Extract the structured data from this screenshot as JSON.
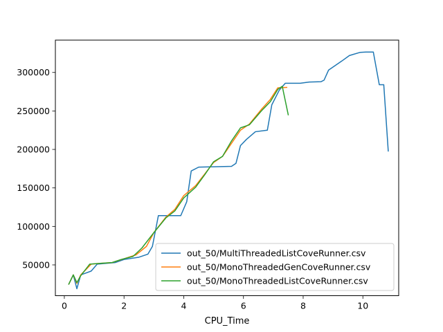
{
  "chart_data": {
    "type": "line",
    "xlabel": "CPU_Time",
    "ylabel": "",
    "xlim": [
      -0.3,
      11.2
    ],
    "ylim": [
      10000,
      342000
    ],
    "x_ticks": [
      0,
      2,
      4,
      6,
      8,
      10
    ],
    "x_tick_labels": [
      "0",
      "2",
      "4",
      "6",
      "8",
      "10"
    ],
    "y_ticks": [
      50000,
      100000,
      150000,
      200000,
      250000,
      300000
    ],
    "y_tick_labels": [
      "50000",
      "100000",
      "150000",
      "200000",
      "250000",
      "300000"
    ],
    "grid": false,
    "legend_position": "lower-right",
    "series": [
      {
        "name": "out_50/MultiThreadedListCoveRunner.csv",
        "color": "#1f77b4",
        "points": [
          [
            0.15,
            25000
          ],
          [
            0.3,
            37000
          ],
          [
            0.42,
            19000
          ],
          [
            0.55,
            37000
          ],
          [
            0.9,
            42000
          ],
          [
            1.1,
            51000
          ],
          [
            1.4,
            52000
          ],
          [
            1.7,
            53000
          ],
          [
            2.0,
            57000
          ],
          [
            2.5,
            60000
          ],
          [
            2.8,
            64000
          ],
          [
            2.95,
            74000
          ],
          [
            3.15,
            114000
          ],
          [
            3.5,
            114000
          ],
          [
            3.9,
            114000
          ],
          [
            4.1,
            132000
          ],
          [
            4.25,
            172000
          ],
          [
            4.5,
            177000
          ],
          [
            5.0,
            177500
          ],
          [
            5.6,
            178000
          ],
          [
            5.75,
            182000
          ],
          [
            5.9,
            205000
          ],
          [
            6.1,
            213000
          ],
          [
            6.4,
            223000
          ],
          [
            6.8,
            225000
          ],
          [
            6.95,
            258000
          ],
          [
            7.2,
            277000
          ],
          [
            7.4,
            286000
          ],
          [
            7.9,
            286000
          ],
          [
            8.2,
            287500
          ],
          [
            8.6,
            288000
          ],
          [
            8.7,
            290000
          ],
          [
            8.85,
            303000
          ],
          [
            9.3,
            315000
          ],
          [
            9.55,
            322000
          ],
          [
            9.9,
            326000
          ],
          [
            10.1,
            326500
          ],
          [
            10.35,
            326500
          ],
          [
            10.55,
            284000
          ],
          [
            10.7,
            284000
          ],
          [
            10.85,
            198000
          ]
        ]
      },
      {
        "name": "out_50/MonoThreadedGenCoveRunner.csv",
        "color": "#ff7f0e",
        "points": [
          [
            0.15,
            25000
          ],
          [
            0.3,
            37000
          ],
          [
            0.42,
            26000
          ],
          [
            0.55,
            37000
          ],
          [
            0.9,
            51000
          ],
          [
            1.2,
            52000
          ],
          [
            1.6,
            53000
          ],
          [
            2.0,
            58000
          ],
          [
            2.4,
            63000
          ],
          [
            2.75,
            74000
          ],
          [
            3.0,
            92000
          ],
          [
            3.4,
            112000
          ],
          [
            3.7,
            122000
          ],
          [
            4.0,
            140000
          ],
          [
            4.4,
            153000
          ],
          [
            4.7,
            168000
          ],
          [
            5.0,
            183000
          ],
          [
            5.3,
            191000
          ],
          [
            5.6,
            208000
          ],
          [
            5.9,
            225000
          ],
          [
            6.2,
            233000
          ],
          [
            6.6,
            252000
          ],
          [
            6.9,
            265000
          ],
          [
            7.15,
            280000
          ],
          [
            7.45,
            280500
          ]
        ]
      },
      {
        "name": "out_50/MonoThreadedListCoveRunner.csv",
        "color": "#2ca02c",
        "points": [
          [
            0.15,
            25000
          ],
          [
            0.3,
            37000
          ],
          [
            0.42,
            27000
          ],
          [
            0.55,
            36000
          ],
          [
            0.85,
            51000
          ],
          [
            1.2,
            52000
          ],
          [
            1.6,
            53000
          ],
          [
            1.9,
            57000
          ],
          [
            2.3,
            61000
          ],
          [
            2.6,
            72000
          ],
          [
            3.0,
            92000
          ],
          [
            3.4,
            111000
          ],
          [
            3.7,
            120000
          ],
          [
            4.0,
            137000
          ],
          [
            4.4,
            151000
          ],
          [
            4.7,
            167000
          ],
          [
            5.0,
            184000
          ],
          [
            5.3,
            191000
          ],
          [
            5.6,
            211000
          ],
          [
            5.9,
            228000
          ],
          [
            6.2,
            232000
          ],
          [
            6.6,
            250000
          ],
          [
            6.9,
            262000
          ],
          [
            7.15,
            278000
          ],
          [
            7.3,
            282000
          ],
          [
            7.5,
            245000
          ]
        ]
      }
    ]
  }
}
